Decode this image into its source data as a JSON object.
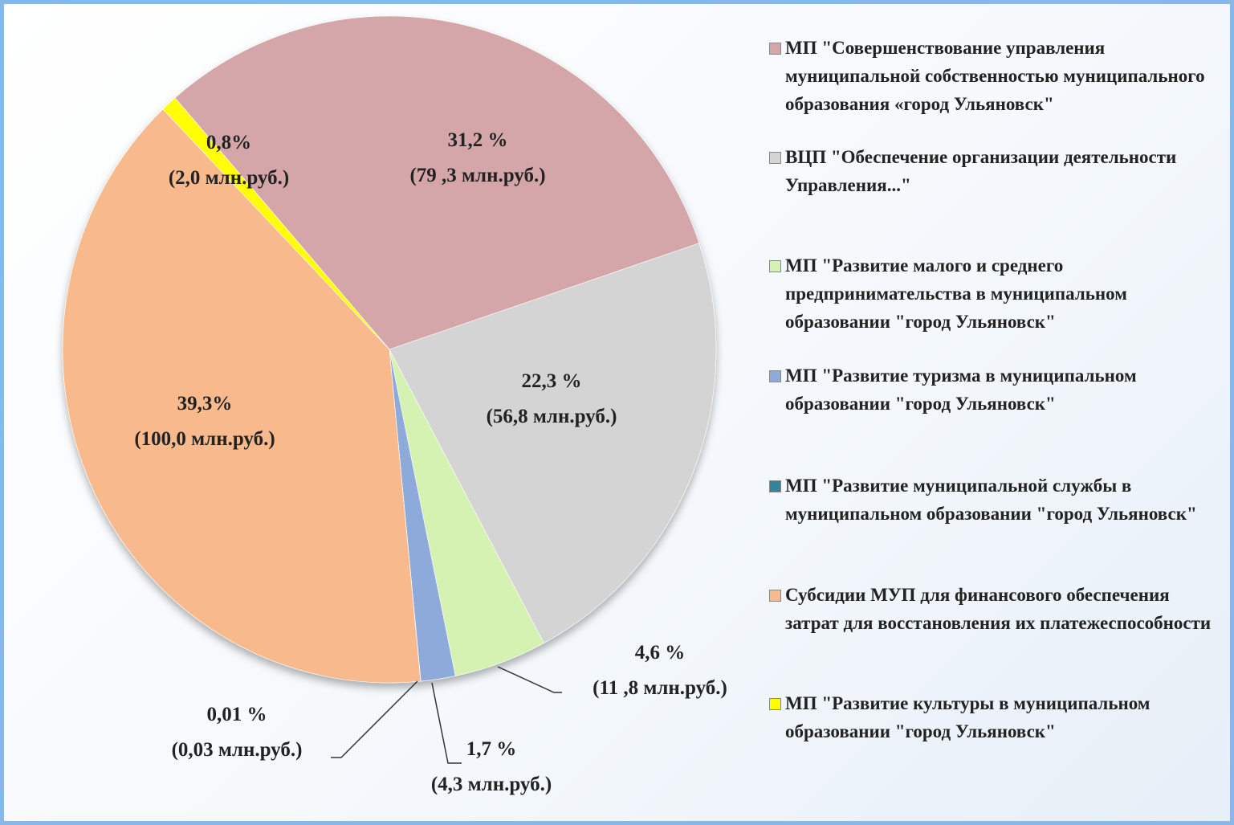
{
  "chart_data": {
    "type": "pie",
    "categories": [
      "МП \"Совершенствование управления муниципальной собственностью муниципального образования «город Ульяновск\"",
      "ВЦП \"Обеспечение организации деятельности Управления...\"",
      "МП \"Развитие малого и среднего предпринимательства в муниципальном образовании \"город Ульяновск\"",
      "МП \"Развитие туризма в муниципальном образовании \"город Ульяновск\"",
      "МП \"Развитие муниципальной службы в муниципальном образовании \"город Ульяновск\"",
      "Субсидии МУП для финансового обеспечения затрат для восстановления их платежеспособности",
      "МП \"Развитие культуры в муниципальном образовании \"город Ульяновск\""
    ],
    "values": [
      31.2,
      22.3,
      4.6,
      1.7,
      0.01,
      39.3,
      0.8
    ],
    "value_labels": [
      "31,2 %",
      "22,3 %",
      "4,6 %",
      "1,7 %",
      "0,01 %",
      "39,3%",
      "0,8%"
    ],
    "amounts": [
      79.3,
      56.8,
      11.8,
      4.3,
      0.03,
      100.0,
      2.0
    ],
    "amount_labels": [
      "(79 ,3 млн.руб.)",
      "(56,8 млн.руб.)",
      "(11 ,8 млн.руб.)",
      "(4,3 млн.руб.)",
      "(0,03 млн.руб.)",
      "(100,0 млн.руб.)",
      "(2,0 млн.руб.)"
    ],
    "colors": [
      "#d4a6a9",
      "#d4d4d4",
      "#d5f2b2",
      "#8eaadb",
      "#31849b",
      "#f8ba8c",
      "#ffff00"
    ],
    "legend": "right"
  }
}
